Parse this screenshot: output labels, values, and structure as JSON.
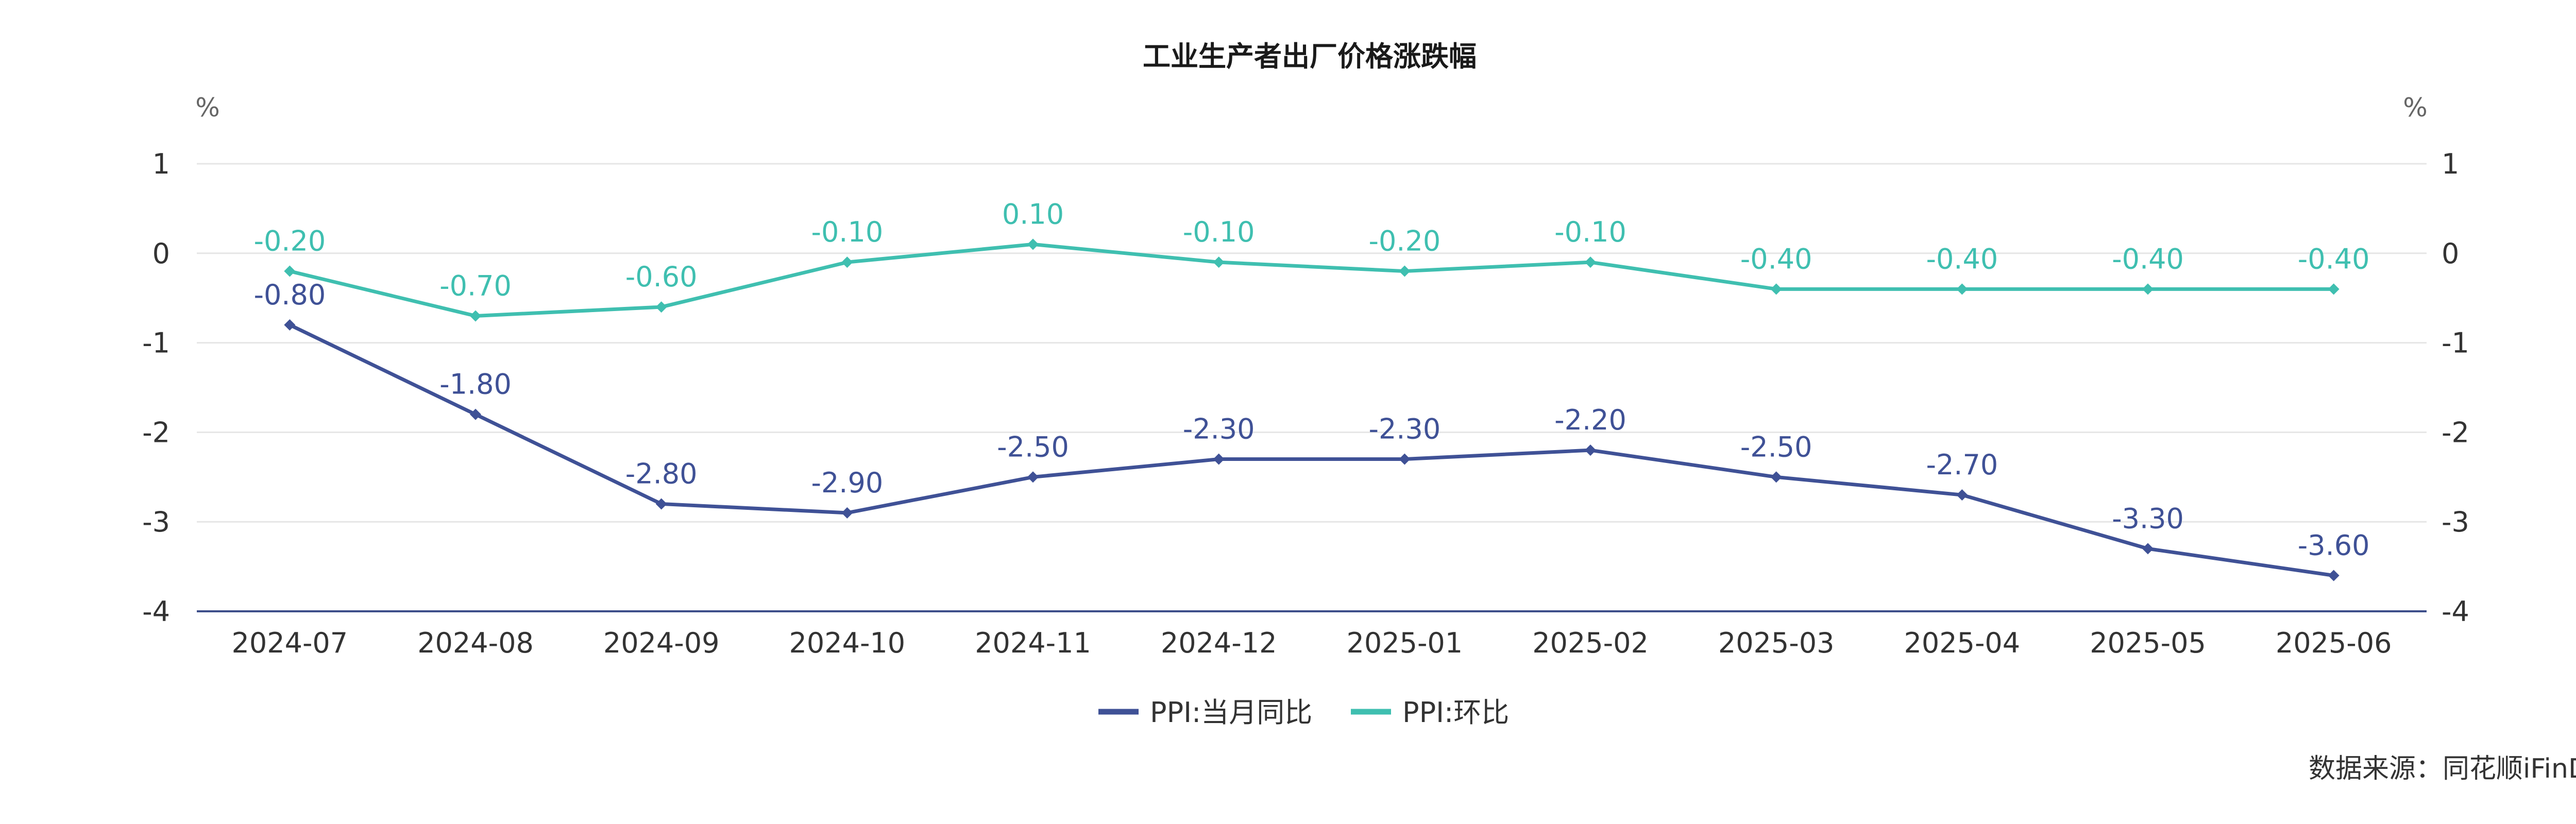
{
  "chart_data": {
    "type": "line",
    "title": "工业生产者出厂价格涨跌幅",
    "left_unit": "%",
    "right_unit": "%",
    "categories": [
      "2024-07",
      "2024-08",
      "2024-09",
      "2024-10",
      "2024-11",
      "2024-12",
      "2025-01",
      "2025-02",
      "2025-03",
      "2025-04",
      "2025-05",
      "2025-06"
    ],
    "ylim": [
      -4,
      1
    ],
    "yticks": [
      1,
      0,
      -1,
      -2,
      -3,
      -4
    ],
    "grid": true,
    "legend_position": "bottom-center",
    "series": [
      {
        "name": "PPI:当月同比",
        "color": "#3f5196",
        "values": [
          -0.8,
          -1.8,
          -2.8,
          -2.9,
          -2.5,
          -2.3,
          -2.3,
          -2.2,
          -2.5,
          -2.7,
          -3.3,
          -3.6
        ],
        "labels": [
          "-0.80",
          "-1.80",
          "-2.80",
          "-2.90",
          "-2.50",
          "-2.30",
          "-2.30",
          "-2.20",
          "-2.50",
          "-2.70",
          "-3.30",
          "-3.60"
        ]
      },
      {
        "name": "PPI:环比",
        "color": "#3fbfb0",
        "values": [
          -0.2,
          -0.7,
          -0.6,
          -0.1,
          0.1,
          -0.1,
          -0.2,
          -0.1,
          -0.4,
          -0.4,
          -0.4,
          -0.4
        ],
        "labels": [
          "-0.20",
          "-0.70",
          "-0.60",
          "-0.10",
          "0.10",
          "-0.10",
          "-0.20",
          "-0.10",
          "-0.40",
          "-0.40",
          "-0.40",
          "-0.40"
        ]
      }
    ],
    "source": "数据来源：同花顺iFinD"
  }
}
